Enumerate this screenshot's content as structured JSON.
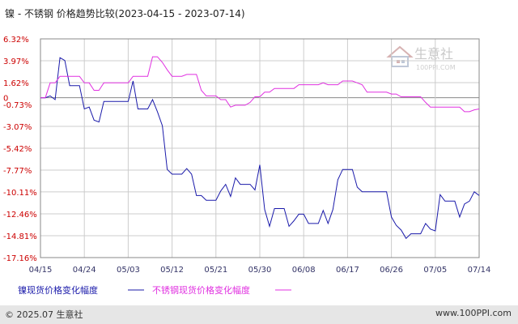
{
  "title": "镍 - 不锈钢 价格趋势比较(2023-04-15 - 2023-07-14)",
  "copyright": "© 2025.07 生意社",
  "website": "www.100PPI.com",
  "watermark": {
    "name": "生意社",
    "url": "100PPI.COM"
  },
  "colors": {
    "nickel": "#1a1aaa",
    "stainless": "#e030e0",
    "grid": "#cccccc",
    "axis": "#888888",
    "tick_y": "#cc0000",
    "tick_x": "#333366"
  },
  "chart_data": {
    "type": "line",
    "title": "镍 - 不锈钢 价格趋势比较(2023-04-15 - 2023-07-14)",
    "x_range": [
      "2023-04-15",
      "2023-07-14"
    ],
    "x_ticks": [
      "04/15",
      "04/24",
      "05/03",
      "05/12",
      "05/21",
      "05/30",
      "06/08",
      "06/17",
      "06/26",
      "07/05",
      "07/14"
    ],
    "y_ticks": [
      "6.32%",
      "3.97%",
      "1.62%",
      "0",
      "-0.73%",
      "-3.07%",
      "-5.42%",
      "-7.77%",
      "-10.11%",
      "-12.46%",
      "-14.81%",
      "-17.16%"
    ],
    "y_tick_values": [
      6.32,
      3.97,
      1.62,
      0,
      -0.73,
      -3.07,
      -5.42,
      -7.77,
      -10.11,
      -12.46,
      -14.81,
      -17.16
    ],
    "ylim": [
      -17.16,
      6.32
    ],
    "grid": true,
    "legend_position": "bottom",
    "series": [
      {
        "name": "镍现货价格变化幅度",
        "color": "#1a1aaa",
        "points": [
          [
            "2023-04-15",
            0
          ],
          [
            "2023-04-16",
            0
          ],
          [
            "2023-04-17",
            0.2
          ],
          [
            "2023-04-18",
            -0.2
          ],
          [
            "2023-04-19",
            4.3
          ],
          [
            "2023-04-20",
            4.0
          ],
          [
            "2023-04-21",
            1.3
          ],
          [
            "2023-04-22",
            1.3
          ],
          [
            "2023-04-23",
            1.3
          ],
          [
            "2023-04-24",
            -1.2
          ],
          [
            "2023-04-25",
            -1.0
          ],
          [
            "2023-04-26",
            -2.4
          ],
          [
            "2023-04-27",
            -2.6
          ],
          [
            "2023-04-28",
            -0.4
          ],
          [
            "2023-04-29",
            -0.4
          ],
          [
            "2023-04-30",
            -0.4
          ],
          [
            "2023-05-01",
            -0.4
          ],
          [
            "2023-05-02",
            -0.4
          ],
          [
            "2023-05-03",
            -0.4
          ],
          [
            "2023-05-04",
            1.8
          ],
          [
            "2023-05-05",
            -1.2
          ],
          [
            "2023-05-06",
            -1.2
          ],
          [
            "2023-05-07",
            -1.2
          ],
          [
            "2023-05-08",
            -0.2
          ],
          [
            "2023-05-09",
            -1.5
          ],
          [
            "2023-05-10",
            -3.0
          ],
          [
            "2023-05-11",
            -7.7
          ],
          [
            "2023-05-12",
            -8.2
          ],
          [
            "2023-05-13",
            -8.2
          ],
          [
            "2023-05-14",
            -8.2
          ],
          [
            "2023-05-15",
            -7.6
          ],
          [
            "2023-05-16",
            -8.2
          ],
          [
            "2023-05-17",
            -10.5
          ],
          [
            "2023-05-18",
            -10.5
          ],
          [
            "2023-05-19",
            -11.0
          ],
          [
            "2023-05-20",
            -11.0
          ],
          [
            "2023-05-21",
            -11.0
          ],
          [
            "2023-05-22",
            -10.0
          ],
          [
            "2023-05-23",
            -9.3
          ],
          [
            "2023-05-24",
            -10.6
          ],
          [
            "2023-05-25",
            -8.6
          ],
          [
            "2023-05-26",
            -9.3
          ],
          [
            "2023-05-27",
            -9.3
          ],
          [
            "2023-05-28",
            -9.3
          ],
          [
            "2023-05-29",
            -9.9
          ],
          [
            "2023-05-30",
            -7.2
          ],
          [
            "2023-05-31",
            -12.0
          ],
          [
            "2023-06-01",
            -13.8
          ],
          [
            "2023-06-02",
            -11.9
          ],
          [
            "2023-06-03",
            -11.9
          ],
          [
            "2023-06-04",
            -11.9
          ],
          [
            "2023-06-05",
            -13.8
          ],
          [
            "2023-06-06",
            -13.2
          ],
          [
            "2023-06-07",
            -12.5
          ],
          [
            "2023-06-08",
            -12.5
          ],
          [
            "2023-06-09",
            -13.5
          ],
          [
            "2023-06-10",
            -13.5
          ],
          [
            "2023-06-11",
            -13.5
          ],
          [
            "2023-06-12",
            -12.1
          ],
          [
            "2023-06-13",
            -13.5
          ],
          [
            "2023-06-14",
            -12.0
          ],
          [
            "2023-06-15",
            -8.8
          ],
          [
            "2023-06-16",
            -7.7
          ],
          [
            "2023-06-17",
            -7.7
          ],
          [
            "2023-06-18",
            -7.7
          ],
          [
            "2023-06-19",
            -9.6
          ],
          [
            "2023-06-20",
            -10.1
          ],
          [
            "2023-06-21",
            -10.1
          ],
          [
            "2023-06-22",
            -10.1
          ],
          [
            "2023-06-23",
            -10.1
          ],
          [
            "2023-06-24",
            -10.1
          ],
          [
            "2023-06-25",
            -10.1
          ],
          [
            "2023-06-26",
            -12.8
          ],
          [
            "2023-06-27",
            -13.7
          ],
          [
            "2023-06-28",
            -14.2
          ],
          [
            "2023-06-29",
            -15.1
          ],
          [
            "2023-06-30",
            -14.6
          ],
          [
            "2023-07-01",
            -14.6
          ],
          [
            "2023-07-02",
            -14.6
          ],
          [
            "2023-07-03",
            -13.5
          ],
          [
            "2023-07-04",
            -14.1
          ],
          [
            "2023-07-05",
            -14.3
          ],
          [
            "2023-07-06",
            -10.4
          ],
          [
            "2023-07-07",
            -11.1
          ],
          [
            "2023-07-08",
            -11.1
          ],
          [
            "2023-07-09",
            -11.1
          ],
          [
            "2023-07-10",
            -12.8
          ],
          [
            "2023-07-11",
            -11.4
          ],
          [
            "2023-07-12",
            -11.1
          ],
          [
            "2023-07-13",
            -10.1
          ],
          [
            "2023-07-14",
            -10.5
          ]
        ]
      },
      {
        "name": "不锈钢现货价格变化幅度",
        "color": "#e030e0",
        "points": [
          [
            "2023-04-15",
            0
          ],
          [
            "2023-04-16",
            0
          ],
          [
            "2023-04-17",
            1.6
          ],
          [
            "2023-04-18",
            1.6
          ],
          [
            "2023-04-19",
            2.3
          ],
          [
            "2023-04-20",
            2.3
          ],
          [
            "2023-04-21",
            2.3
          ],
          [
            "2023-04-22",
            2.3
          ],
          [
            "2023-04-23",
            2.3
          ],
          [
            "2023-04-24",
            1.6
          ],
          [
            "2023-04-25",
            1.6
          ],
          [
            "2023-04-26",
            0.8
          ],
          [
            "2023-04-27",
            0.8
          ],
          [
            "2023-04-28",
            1.6
          ],
          [
            "2023-04-29",
            1.6
          ],
          [
            "2023-04-30",
            1.6
          ],
          [
            "2023-05-01",
            1.6
          ],
          [
            "2023-05-02",
            1.6
          ],
          [
            "2023-05-03",
            1.6
          ],
          [
            "2023-05-04",
            2.3
          ],
          [
            "2023-05-05",
            2.3
          ],
          [
            "2023-05-06",
            2.3
          ],
          [
            "2023-05-07",
            2.3
          ],
          [
            "2023-05-08",
            4.4
          ],
          [
            "2023-05-09",
            4.4
          ],
          [
            "2023-05-10",
            3.8
          ],
          [
            "2023-05-11",
            3.0
          ],
          [
            "2023-05-12",
            2.3
          ],
          [
            "2023-05-13",
            2.3
          ],
          [
            "2023-05-14",
            2.3
          ],
          [
            "2023-05-15",
            2.5
          ],
          [
            "2023-05-16",
            2.5
          ],
          [
            "2023-05-17",
            2.5
          ],
          [
            "2023-05-18",
            0.8
          ],
          [
            "2023-05-19",
            0.2
          ],
          [
            "2023-05-20",
            0.2
          ],
          [
            "2023-05-21",
            0.2
          ],
          [
            "2023-05-22",
            -0.2
          ],
          [
            "2023-05-23",
            -0.2
          ],
          [
            "2023-05-24",
            -1.0
          ],
          [
            "2023-05-25",
            -0.8
          ],
          [
            "2023-05-26",
            -0.8
          ],
          [
            "2023-05-27",
            -0.8
          ],
          [
            "2023-05-28",
            -0.5
          ],
          [
            "2023-05-29",
            0.1
          ],
          [
            "2023-05-30",
            0.1
          ],
          [
            "2023-05-31",
            0.6
          ],
          [
            "2023-06-01",
            0.6
          ],
          [
            "2023-06-02",
            1.0
          ],
          [
            "2023-06-03",
            1.0
          ],
          [
            "2023-06-04",
            1.0
          ],
          [
            "2023-06-05",
            1.0
          ],
          [
            "2023-06-06",
            1.0
          ],
          [
            "2023-06-07",
            1.4
          ],
          [
            "2023-06-08",
            1.4
          ],
          [
            "2023-06-09",
            1.4
          ],
          [
            "2023-06-10",
            1.4
          ],
          [
            "2023-06-11",
            1.4
          ],
          [
            "2023-06-12",
            1.6
          ],
          [
            "2023-06-13",
            1.4
          ],
          [
            "2023-06-14",
            1.4
          ],
          [
            "2023-06-15",
            1.4
          ],
          [
            "2023-06-16",
            1.8
          ],
          [
            "2023-06-17",
            1.8
          ],
          [
            "2023-06-18",
            1.8
          ],
          [
            "2023-06-19",
            1.6
          ],
          [
            "2023-06-20",
            1.4
          ],
          [
            "2023-06-21",
            0.6
          ],
          [
            "2023-06-22",
            0.6
          ],
          [
            "2023-06-23",
            0.6
          ],
          [
            "2023-06-24",
            0.6
          ],
          [
            "2023-06-25",
            0.6
          ],
          [
            "2023-06-26",
            0.4
          ],
          [
            "2023-06-27",
            0.4
          ],
          [
            "2023-06-28",
            0.1
          ],
          [
            "2023-06-29",
            0.1
          ],
          [
            "2023-06-30",
            0.1
          ],
          [
            "2023-07-01",
            0.1
          ],
          [
            "2023-07-02",
            0.1
          ],
          [
            "2023-07-03",
            -0.5
          ],
          [
            "2023-07-04",
            -1.0
          ],
          [
            "2023-07-05",
            -1.0
          ],
          [
            "2023-07-06",
            -1.0
          ],
          [
            "2023-07-07",
            -1.0
          ],
          [
            "2023-07-08",
            -1.0
          ],
          [
            "2023-07-09",
            -1.0
          ],
          [
            "2023-07-10",
            -1.0
          ],
          [
            "2023-07-11",
            -1.5
          ],
          [
            "2023-07-12",
            -1.5
          ],
          [
            "2023-07-13",
            -1.3
          ],
          [
            "2023-07-14",
            -1.2
          ]
        ]
      }
    ]
  }
}
